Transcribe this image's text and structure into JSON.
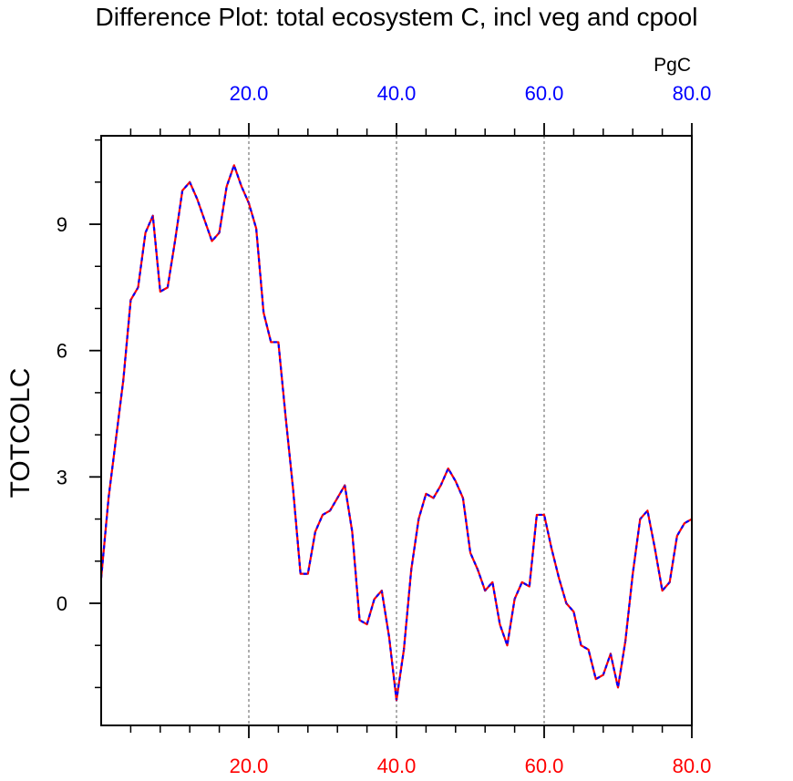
{
  "chart_data": {
    "type": "line",
    "title": "Difference Plot: total ecosystem C, incl veg and cpool",
    "units": "PgC",
    "ylabel": "TOTCOLC",
    "xlabel": "",
    "xlim": [
      0,
      80
    ],
    "ylim": [
      -2.9,
      11.1
    ],
    "x_major_ticks": [
      20,
      40,
      60,
      80
    ],
    "x_major_tick_labels": [
      "20.0",
      "40.0",
      "60.0",
      "80.0"
    ],
    "x_minor_step": 4,
    "y_major_ticks": [
      0,
      3,
      6,
      9
    ],
    "y_major_tick_labels": [
      "0",
      "3",
      "6",
      "9"
    ],
    "y_minor_step": 1,
    "top_axis_color": "#0000ff",
    "bottom_axis_color": "#ff0000",
    "vertical_gridlines_at": [
      20,
      40,
      60
    ],
    "series": [
      {
        "name": "red",
        "color": "#ff0000",
        "style": "solid",
        "x": [
          0,
          1,
          2,
          3,
          4,
          5,
          6,
          7,
          8,
          9,
          10,
          11,
          12,
          13,
          14,
          15,
          16,
          17,
          18,
          19,
          20,
          21,
          22,
          23,
          24,
          25,
          26,
          27,
          28,
          29,
          30,
          31,
          32,
          33,
          34,
          35,
          36,
          37,
          38,
          39,
          40,
          41,
          42,
          43,
          44,
          45,
          46,
          47,
          48,
          49,
          50,
          51,
          52,
          53,
          54,
          55,
          56,
          57,
          58,
          59,
          60,
          61,
          62,
          63,
          64,
          65,
          66,
          67,
          68,
          69,
          70,
          71,
          72,
          73,
          74,
          75,
          76,
          77,
          78,
          79,
          80
        ],
        "values": [
          0.6,
          2.5,
          3.9,
          5.3,
          7.2,
          7.5,
          8.8,
          9.2,
          7.4,
          7.5,
          8.6,
          9.8,
          10.0,
          9.6,
          9.1,
          8.6,
          8.8,
          9.9,
          10.4,
          9.9,
          9.5,
          8.9,
          6.9,
          6.2,
          6.2,
          4.4,
          2.7,
          0.7,
          0.7,
          1.7,
          2.1,
          2.2,
          2.5,
          2.8,
          1.7,
          -0.4,
          -0.5,
          0.1,
          0.3,
          -0.8,
          -2.3,
          -1.1,
          0.8,
          2.0,
          2.6,
          2.5,
          2.8,
          3.2,
          2.9,
          2.5,
          1.2,
          0.8,
          0.3,
          0.5,
          -0.5,
          -1.0,
          0.1,
          0.5,
          0.4,
          2.1,
          2.1,
          1.3,
          0.6,
          0.0,
          -0.2,
          -1.0,
          -1.1,
          -1.8,
          -1.7,
          -1.2,
          -2.0,
          -0.9,
          0.7,
          2.0,
          2.2,
          1.3,
          0.3,
          0.5,
          1.6,
          1.9,
          2.0
        ]
      },
      {
        "name": "blue",
        "color": "#0000ff",
        "style": "dashed",
        "x": [
          0,
          1,
          2,
          3,
          4,
          5,
          6,
          7,
          8,
          9,
          10,
          11,
          12,
          13,
          14,
          15,
          16,
          17,
          18,
          19,
          20,
          21,
          22,
          23,
          24,
          25,
          26,
          27,
          28,
          29,
          30,
          31,
          32,
          33,
          34,
          35,
          36,
          37,
          38,
          39,
          40,
          41,
          42,
          43,
          44,
          45,
          46,
          47,
          48,
          49,
          50,
          51,
          52,
          53,
          54,
          55,
          56,
          57,
          58,
          59,
          60,
          61,
          62,
          63,
          64,
          65,
          66,
          67,
          68,
          69,
          70,
          71,
          72,
          73,
          74,
          75,
          76,
          77,
          78,
          79,
          80
        ],
        "values": [
          0.6,
          2.5,
          3.9,
          5.3,
          7.2,
          7.5,
          8.8,
          9.2,
          7.4,
          7.5,
          8.6,
          9.8,
          10.0,
          9.6,
          9.1,
          8.6,
          8.8,
          9.9,
          10.4,
          9.9,
          9.5,
          8.9,
          6.9,
          6.2,
          6.2,
          4.4,
          2.7,
          0.7,
          0.7,
          1.7,
          2.1,
          2.2,
          2.5,
          2.8,
          1.7,
          -0.4,
          -0.5,
          0.1,
          0.3,
          -0.8,
          -2.3,
          -1.1,
          0.8,
          2.0,
          2.6,
          2.5,
          2.8,
          3.2,
          2.9,
          2.5,
          1.2,
          0.8,
          0.3,
          0.5,
          -0.5,
          -1.0,
          0.1,
          0.5,
          0.4,
          2.1,
          2.1,
          1.3,
          0.6,
          0.0,
          -0.2,
          -1.0,
          -1.1,
          -1.8,
          -1.7,
          -1.2,
          -2.0,
          -0.9,
          0.7,
          2.0,
          2.2,
          1.3,
          0.3,
          0.5,
          1.6,
          1.9,
          2.0
        ]
      }
    ]
  }
}
